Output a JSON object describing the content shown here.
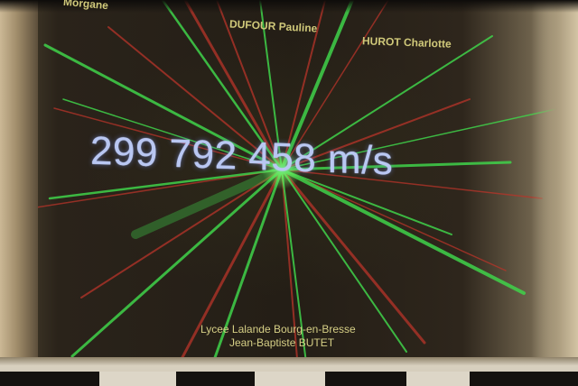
{
  "projection": {
    "speed_of_light_text": "299 792 458 m/s",
    "names": [
      "Morgane",
      "DUFOUR Pauline",
      "HUROT Charlotte"
    ],
    "school": "Lycee Lalande Bourg-en-Bresse",
    "teacher": "Jean-Baptiste BUTET"
  },
  "colors": {
    "speed_text": "#b9c7f2",
    "name_text": "#d0c97a",
    "green_ray": "#3fd24a",
    "red_ray": "#c0392b"
  }
}
